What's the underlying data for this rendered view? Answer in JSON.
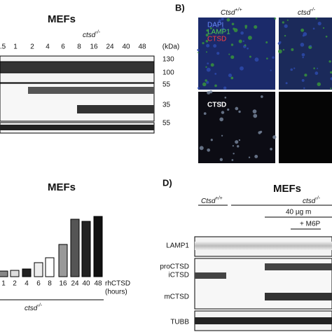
{
  "panel_a": {
    "title": "MEFs",
    "genotype": {
      "text": "ctsd",
      "sup": "-/-"
    },
    "lanes": [
      ".5",
      "1",
      "2",
      "4",
      "6",
      "8",
      "16",
      "24",
      "40",
      "48"
    ],
    "unit": "(kDa)",
    "markers": [
      "130",
      "100",
      "55",
      "35",
      "55"
    ]
  },
  "panel_b": {
    "label": "B)",
    "columns": [
      {
        "text": "Ctsd",
        "sup": "+/+"
      },
      {
        "text": "ctsd",
        "sup": "-/-"
      }
    ],
    "channels": [
      "DAPI",
      "LAMP1",
      "CTSD"
    ],
    "bottom_label": "CTSD"
  },
  "panel_c": {
    "title": "MEFs",
    "categories": [
      "1",
      "2",
      "4",
      "6",
      "8",
      "16",
      "24",
      "40",
      "48"
    ],
    "values": [
      8,
      9,
      11,
      20,
      27,
      46,
      82,
      79,
      86
    ],
    "colors": [
      "#888",
      "#ddd",
      "#222",
      "#eee",
      "#fff",
      "#999",
      "#555",
      "#222",
      "#111"
    ],
    "x_label": [
      "rhCTSD",
      "(hours)"
    ],
    "genotype": {
      "text": "ctsd",
      "sup": "-/-"
    }
  },
  "panel_d": {
    "label": "D)",
    "title": "MEFs",
    "wt": {
      "text": "Ctsd",
      "sup": "+/+"
    },
    "ko": {
      "text": "ctsd",
      "sup": "-/-"
    },
    "dose": "40 µg m",
    "m6p": "+ M6P",
    "rows": [
      "LAMP1",
      "proCTSD",
      "iCTSD",
      "mCTSD",
      "TUBB"
    ]
  }
}
